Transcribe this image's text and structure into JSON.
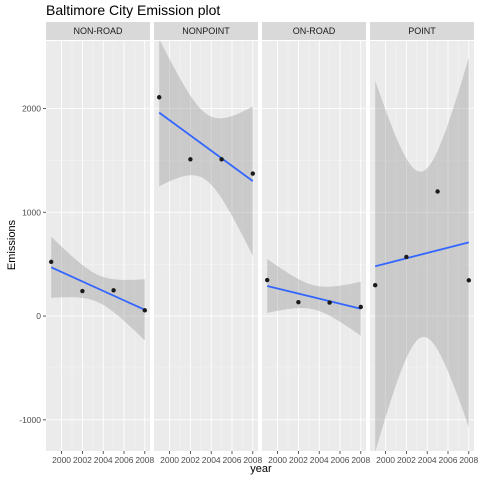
{
  "chart_data": {
    "type": "scatter",
    "title": "Baltimore City Emission plot",
    "xlabel": "year",
    "ylabel": "Emissions",
    "xlim": [
      1998.5,
      2008.5
    ],
    "ylim": [
      -1300,
      2650
    ],
    "x_ticks": [
      2000,
      2002,
      2004,
      2006,
      2008
    ],
    "y_ticks": [
      -1000,
      0,
      1000,
      2000
    ],
    "grid": true,
    "colors": {
      "panel_bg": "#ebebeb",
      "strip_bg": "#d9d9d9",
      "grid_major": "#ffffff",
      "point": "#1a1a1a",
      "smooth_line": "#3366ff",
      "ribbon": "#999999"
    },
    "facets": [
      {
        "label": "NON-ROAD",
        "x": [
          1999,
          2002,
          2005,
          2008
        ],
        "y": [
          522,
          241,
          248,
          55
        ],
        "trend": {
          "x": [
            1999,
            2008
          ],
          "y": [
            470,
            60
          ],
          "ci_lower": [
            180,
            -230
          ],
          "ci_upper": [
            770,
            360
          ]
        }
      },
      {
        "label": "NONPOINT",
        "x": [
          1999,
          2002,
          2005,
          2008
        ],
        "y": [
          2108,
          1510,
          1510,
          1373
        ],
        "trend": {
          "x": [
            1999,
            2008
          ],
          "y": [
            1960,
            1300
          ],
          "ci_lower": [
            1240,
            580
          ],
          "ci_upper": [
            2660,
            2020
          ]
        }
      },
      {
        "label": "ON-ROAD",
        "x": [
          1999,
          2002,
          2005,
          2008
        ],
        "y": [
          347,
          134,
          130,
          88
        ],
        "trend": {
          "x": [
            1999,
            2008
          ],
          "y": [
            290,
            70
          ],
          "ci_lower": [
            30,
            -190
          ],
          "ci_upper": [
            550,
            330
          ]
        }
      },
      {
        "label": "POINT",
        "x": [
          1999,
          2002,
          2005,
          2008
        ],
        "y": [
          297,
          570,
          1200,
          344
        ],
        "trend": {
          "x": [
            1999,
            2008
          ],
          "y": [
            480,
            710
          ],
          "ci_lower": [
            -1310,
            -1070
          ],
          "ci_upper": [
            2270,
            2490
          ]
        }
      }
    ]
  }
}
